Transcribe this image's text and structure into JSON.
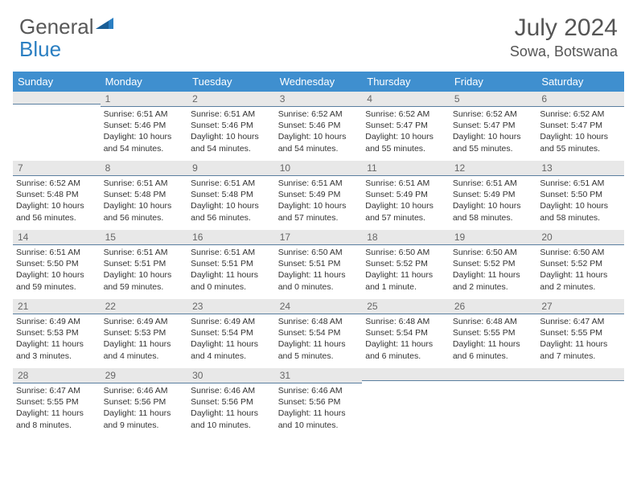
{
  "brand": {
    "part1": "General",
    "part2": "Blue"
  },
  "title": "July 2024",
  "location": "Sowa, Botswana",
  "colors": {
    "header_bg": "#3f8fcf",
    "header_text": "#ffffff",
    "daynum_bg": "#e8e8e8",
    "daynum_border": "#5a7fa0",
    "brand_gray": "#585858",
    "brand_blue": "#2b7fc2"
  },
  "weekdays": [
    "Sunday",
    "Monday",
    "Tuesday",
    "Wednesday",
    "Thursday",
    "Friday",
    "Saturday"
  ],
  "cells": [
    {
      "n": "",
      "sr": "",
      "ss": "",
      "dl": ""
    },
    {
      "n": "1",
      "sr": "6:51 AM",
      "ss": "5:46 PM",
      "dl": "10 hours and 54 minutes."
    },
    {
      "n": "2",
      "sr": "6:51 AM",
      "ss": "5:46 PM",
      "dl": "10 hours and 54 minutes."
    },
    {
      "n": "3",
      "sr": "6:52 AM",
      "ss": "5:46 PM",
      "dl": "10 hours and 54 minutes."
    },
    {
      "n": "4",
      "sr": "6:52 AM",
      "ss": "5:47 PM",
      "dl": "10 hours and 55 minutes."
    },
    {
      "n": "5",
      "sr": "6:52 AM",
      "ss": "5:47 PM",
      "dl": "10 hours and 55 minutes."
    },
    {
      "n": "6",
      "sr": "6:52 AM",
      "ss": "5:47 PM",
      "dl": "10 hours and 55 minutes."
    },
    {
      "n": "7",
      "sr": "6:52 AM",
      "ss": "5:48 PM",
      "dl": "10 hours and 56 minutes."
    },
    {
      "n": "8",
      "sr": "6:51 AM",
      "ss": "5:48 PM",
      "dl": "10 hours and 56 minutes."
    },
    {
      "n": "9",
      "sr": "6:51 AM",
      "ss": "5:48 PM",
      "dl": "10 hours and 56 minutes."
    },
    {
      "n": "10",
      "sr": "6:51 AM",
      "ss": "5:49 PM",
      "dl": "10 hours and 57 minutes."
    },
    {
      "n": "11",
      "sr": "6:51 AM",
      "ss": "5:49 PM",
      "dl": "10 hours and 57 minutes."
    },
    {
      "n": "12",
      "sr": "6:51 AM",
      "ss": "5:49 PM",
      "dl": "10 hours and 58 minutes."
    },
    {
      "n": "13",
      "sr": "6:51 AM",
      "ss": "5:50 PM",
      "dl": "10 hours and 58 minutes."
    },
    {
      "n": "14",
      "sr": "6:51 AM",
      "ss": "5:50 PM",
      "dl": "10 hours and 59 minutes."
    },
    {
      "n": "15",
      "sr": "6:51 AM",
      "ss": "5:51 PM",
      "dl": "10 hours and 59 minutes."
    },
    {
      "n": "16",
      "sr": "6:51 AM",
      "ss": "5:51 PM",
      "dl": "11 hours and 0 minutes."
    },
    {
      "n": "17",
      "sr": "6:50 AM",
      "ss": "5:51 PM",
      "dl": "11 hours and 0 minutes."
    },
    {
      "n": "18",
      "sr": "6:50 AM",
      "ss": "5:52 PM",
      "dl": "11 hours and 1 minute."
    },
    {
      "n": "19",
      "sr": "6:50 AM",
      "ss": "5:52 PM",
      "dl": "11 hours and 2 minutes."
    },
    {
      "n": "20",
      "sr": "6:50 AM",
      "ss": "5:52 PM",
      "dl": "11 hours and 2 minutes."
    },
    {
      "n": "21",
      "sr": "6:49 AM",
      "ss": "5:53 PM",
      "dl": "11 hours and 3 minutes."
    },
    {
      "n": "22",
      "sr": "6:49 AM",
      "ss": "5:53 PM",
      "dl": "11 hours and 4 minutes."
    },
    {
      "n": "23",
      "sr": "6:49 AM",
      "ss": "5:54 PM",
      "dl": "11 hours and 4 minutes."
    },
    {
      "n": "24",
      "sr": "6:48 AM",
      "ss": "5:54 PM",
      "dl": "11 hours and 5 minutes."
    },
    {
      "n": "25",
      "sr": "6:48 AM",
      "ss": "5:54 PM",
      "dl": "11 hours and 6 minutes."
    },
    {
      "n": "26",
      "sr": "6:48 AM",
      "ss": "5:55 PM",
      "dl": "11 hours and 6 minutes."
    },
    {
      "n": "27",
      "sr": "6:47 AM",
      "ss": "5:55 PM",
      "dl": "11 hours and 7 minutes."
    },
    {
      "n": "28",
      "sr": "6:47 AM",
      "ss": "5:55 PM",
      "dl": "11 hours and 8 minutes."
    },
    {
      "n": "29",
      "sr": "6:46 AM",
      "ss": "5:56 PM",
      "dl": "11 hours and 9 minutes."
    },
    {
      "n": "30",
      "sr": "6:46 AM",
      "ss": "5:56 PM",
      "dl": "11 hours and 10 minutes."
    },
    {
      "n": "31",
      "sr": "6:46 AM",
      "ss": "5:56 PM",
      "dl": "11 hours and 10 minutes."
    },
    {
      "n": "",
      "sr": "",
      "ss": "",
      "dl": ""
    },
    {
      "n": "",
      "sr": "",
      "ss": "",
      "dl": ""
    },
    {
      "n": "",
      "sr": "",
      "ss": "",
      "dl": ""
    }
  ],
  "labels": {
    "sunrise": "Sunrise:",
    "sunset": "Sunset:",
    "daylight": "Daylight:"
  }
}
